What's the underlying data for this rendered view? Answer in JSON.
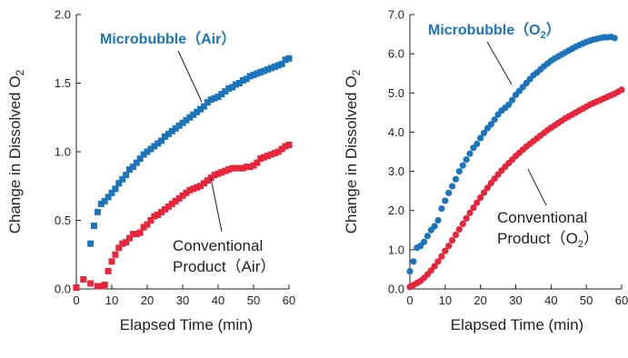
{
  "chart_data": [
    {
      "type": "scatter",
      "xlabel": "Elapsed Time (min)",
      "ylabel": "Change in Dissolved O",
      "ylabel_sub": "2",
      "xlim": [
        0,
        60
      ],
      "ylim": [
        0,
        2.0
      ],
      "xticks": [
        "0",
        "10",
        "20",
        "30",
        "40",
        "50",
        "60"
      ],
      "xtick_values": [
        0,
        10,
        20,
        30,
        40,
        50,
        60
      ],
      "yticks": [
        "0.0",
        "0.5",
        "1.0",
        "1.5",
        "2.0"
      ],
      "ytick_values": [
        0,
        0.5,
        1.0,
        1.5,
        2.0
      ],
      "grid": false,
      "marker": "square",
      "annotations": [
        {
          "series": 0,
          "lines": [
            {
              "text": "Microbubble",
              "paren": "Air"
            }
          ],
          "color": "#1a75bc",
          "bold": true
        },
        {
          "series": 1,
          "lines": [
            {
              "text": "Conventional"
            },
            {
              "text": "Product",
              "paren": "Air"
            }
          ],
          "color": "#231f20",
          "bold": false
        }
      ],
      "series": [
        {
          "name": "Microbubble (Air)",
          "color": "#1a75bc",
          "x": [
            4,
            5,
            6,
            7,
            8,
            9,
            10,
            11,
            12,
            13,
            14,
            15,
            16,
            17,
            18,
            19,
            20,
            21,
            22,
            23,
            24,
            25,
            26,
            27,
            28,
            29,
            30,
            31,
            32,
            33,
            34,
            35,
            36,
            37,
            38,
            39,
            40,
            41,
            42,
            43,
            44,
            45,
            46,
            47,
            48,
            49,
            50,
            51,
            52,
            53,
            54,
            55,
            56,
            57,
            58,
            59,
            60
          ],
          "y": [
            0.33,
            0.46,
            0.56,
            0.62,
            0.64,
            0.67,
            0.7,
            0.73,
            0.77,
            0.8,
            0.83,
            0.87,
            0.89,
            0.92,
            0.95,
            0.98,
            1.0,
            1.02,
            1.04,
            1.06,
            1.08,
            1.11,
            1.13,
            1.15,
            1.17,
            1.19,
            1.21,
            1.23,
            1.25,
            1.27,
            1.29,
            1.31,
            1.33,
            1.36,
            1.38,
            1.39,
            1.4,
            1.42,
            1.44,
            1.46,
            1.47,
            1.49,
            1.5,
            1.52,
            1.53,
            1.55,
            1.56,
            1.57,
            1.58,
            1.59,
            1.6,
            1.61,
            1.62,
            1.63,
            1.64,
            1.67,
            1.68
          ]
        },
        {
          "name": "Conventional Product (Air)",
          "color": "#e8253a",
          "x": [
            0,
            2,
            4,
            6,
            7,
            8,
            9,
            10,
            11,
            12,
            13,
            14,
            15,
            16,
            17,
            18,
            19,
            20,
            21,
            22,
            23,
            24,
            25,
            26,
            27,
            28,
            29,
            30,
            31,
            32,
            33,
            34,
            35,
            36,
            37,
            38,
            39,
            40,
            41,
            42,
            43,
            44,
            45,
            46,
            47,
            48,
            49,
            50,
            51,
            52,
            53,
            54,
            55,
            56,
            57,
            58,
            59,
            60
          ],
          "y": [
            0.01,
            0.07,
            0.04,
            0.02,
            0.02,
            0.03,
            0.13,
            0.2,
            0.25,
            0.3,
            0.33,
            0.34,
            0.37,
            0.4,
            0.4,
            0.41,
            0.45,
            0.47,
            0.5,
            0.53,
            0.54,
            0.56,
            0.58,
            0.6,
            0.62,
            0.64,
            0.66,
            0.68,
            0.7,
            0.72,
            0.73,
            0.74,
            0.75,
            0.77,
            0.79,
            0.81,
            0.83,
            0.84,
            0.85,
            0.86,
            0.87,
            0.88,
            0.88,
            0.88,
            0.88,
            0.89,
            0.89,
            0.9,
            0.92,
            0.95,
            0.96,
            0.97,
            0.98,
            0.99,
            1.0,
            1.02,
            1.04,
            1.05
          ]
        }
      ]
    },
    {
      "type": "scatter",
      "xlabel": "Elapsed Time (min)",
      "ylabel": "Change in Dissolved O",
      "ylabel_sub": "2",
      "xlim": [
        0,
        60
      ],
      "ylim": [
        0,
        7.0
      ],
      "xticks": [
        "0",
        "10",
        "20",
        "30",
        "40",
        "50",
        "60"
      ],
      "xtick_values": [
        0,
        10,
        20,
        30,
        40,
        50,
        60
      ],
      "yticks": [
        "0.0",
        "1.0",
        "2.0",
        "3.0",
        "4.0",
        "5.0",
        "6.0",
        "7.0"
      ],
      "ytick_values": [
        0,
        1,
        2,
        3,
        4,
        5,
        6,
        7
      ],
      "grid": false,
      "marker": "circle",
      "annotations": [
        {
          "series": 0,
          "lines": [
            {
              "text": "Microbubble"
            },
            {
              "text": "",
              "paren": "O",
              "paren_sub": "2"
            }
          ],
          "color": "#1a75bc",
          "bold": true
        },
        {
          "series": 1,
          "lines": [
            {
              "text": "Conventional"
            },
            {
              "text": "Product",
              "paren": "O",
              "paren_sub": "2"
            }
          ],
          "color": "#231f20",
          "bold": false
        }
      ],
      "series": [
        {
          "name": "Microbubble (O2)",
          "color": "#1a75bc",
          "x": [
            0,
            1,
            2,
            3,
            4,
            5,
            6,
            7,
            8,
            9,
            10,
            11,
            12,
            13,
            14,
            15,
            16,
            17,
            18,
            19,
            20,
            21,
            22,
            23,
            24,
            25,
            26,
            27,
            28,
            29,
            30,
            31,
            32,
            33,
            34,
            35,
            36,
            37,
            38,
            39,
            40,
            41,
            42,
            43,
            44,
            45,
            46,
            47,
            48,
            49,
            50,
            51,
            52,
            53,
            54,
            55,
            56,
            57,
            58
          ],
          "y": [
            0.45,
            0.7,
            1.05,
            1.1,
            1.2,
            1.35,
            1.5,
            1.6,
            1.75,
            2.05,
            2.25,
            2.45,
            2.62,
            2.8,
            3.0,
            3.15,
            3.3,
            3.45,
            3.6,
            3.7,
            3.85,
            3.98,
            4.1,
            4.2,
            4.32,
            4.45,
            4.55,
            4.62,
            4.7,
            4.82,
            4.95,
            5.05,
            5.15,
            5.25,
            5.35,
            5.45,
            5.52,
            5.6,
            5.68,
            5.75,
            5.82,
            5.88,
            5.93,
            5.98,
            6.03,
            6.08,
            6.13,
            6.18,
            6.22,
            6.26,
            6.3,
            6.33,
            6.36,
            6.38,
            6.4,
            6.42,
            6.42,
            6.43,
            6.4
          ]
        },
        {
          "name": "Conventional Product (O2)",
          "color": "#e8253a",
          "x": [
            0,
            1,
            2,
            3,
            4,
            5,
            6,
            7,
            8,
            9,
            10,
            11,
            12,
            13,
            14,
            15,
            16,
            17,
            18,
            19,
            20,
            21,
            22,
            23,
            24,
            25,
            26,
            27,
            28,
            29,
            30,
            31,
            32,
            33,
            34,
            35,
            36,
            37,
            38,
            39,
            40,
            41,
            42,
            43,
            44,
            45,
            46,
            47,
            48,
            49,
            50,
            51,
            52,
            53,
            54,
            55,
            56,
            57,
            58,
            59,
            60
          ],
          "y": [
            0.05,
            0.1,
            0.15,
            0.2,
            0.28,
            0.37,
            0.47,
            0.58,
            0.7,
            0.83,
            0.97,
            1.1,
            1.24,
            1.38,
            1.52,
            1.66,
            1.8,
            1.94,
            2.07,
            2.2,
            2.33,
            2.46,
            2.58,
            2.7,
            2.81,
            2.92,
            3.02,
            3.12,
            3.21,
            3.3,
            3.39,
            3.47,
            3.55,
            3.63,
            3.7,
            3.77,
            3.84,
            3.91,
            3.98,
            4.05,
            4.11,
            4.17,
            4.23,
            4.29,
            4.35,
            4.4,
            4.45,
            4.5,
            4.55,
            4.6,
            4.65,
            4.7,
            4.74,
            4.78,
            4.82,
            4.86,
            4.9,
            4.94,
            4.98,
            5.03,
            5.08
          ]
        }
      ]
    }
  ]
}
